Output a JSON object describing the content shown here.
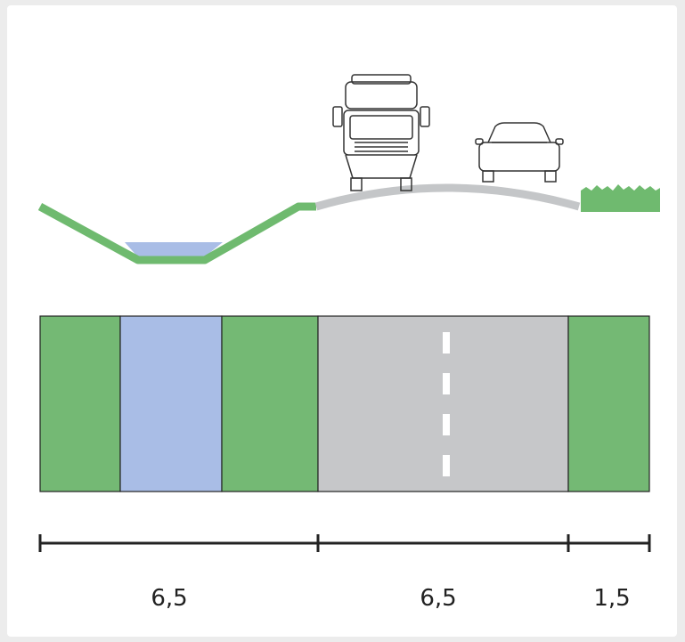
{
  "dimensions": [
    "6,5",
    "6,5",
    "1,5"
  ]
}
